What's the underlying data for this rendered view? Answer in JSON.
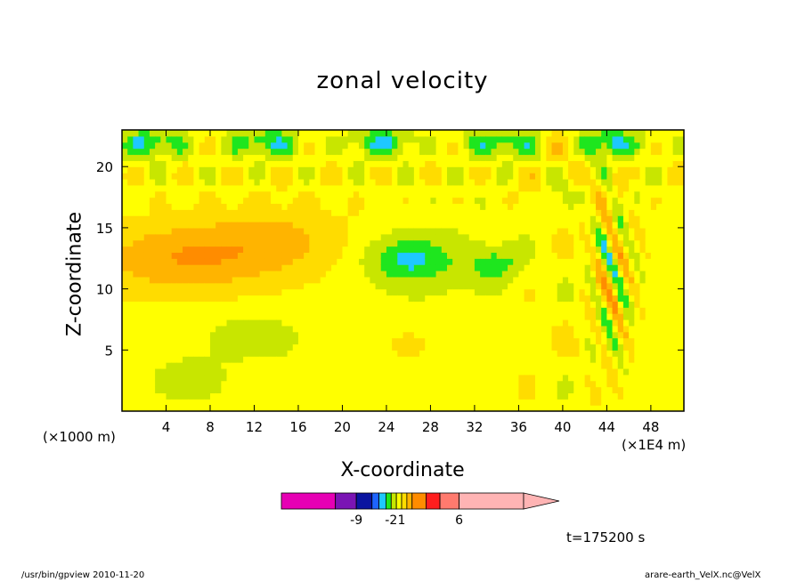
{
  "chart_data": {
    "type": "heatmap",
    "title": "zonal velocity",
    "xlabel": "X-coordinate",
    "ylabel": "Z-coordinate",
    "x_unit_note": "(×1000 m)",
    "x_multiplier_note": "(×1E4 m)",
    "xlim": [
      0,
      51
    ],
    "ylim": [
      0,
      23
    ],
    "x_ticks": [
      4,
      8,
      12,
      16,
      20,
      24,
      28,
      32,
      36,
      40,
      44,
      48
    ],
    "x_tick_labels": [
      "4",
      "8",
      "12",
      "16",
      "20",
      "24",
      "28",
      "32",
      "36",
      "40",
      "44",
      "48"
    ],
    "y_ticks": [
      5,
      10,
      15,
      20
    ],
    "y_tick_labels": [
      "5",
      "10",
      "15",
      "20"
    ],
    "colorbar": {
      "levels": [
        -20,
        -9,
        -6,
        -4,
        -3,
        -2,
        -1,
        0,
        1,
        2,
        3,
        4,
        6,
        8,
        20
      ],
      "colors": [
        "#e600b4",
        "#7a14b4",
        "#0a14a0",
        "#1e64ff",
        "#1ec8ff",
        "#1ee61e",
        "#c8e600",
        "#ffff00",
        "#ffdc00",
        "#ffb400",
        "#ff8c00",
        "#ff1e1e",
        "#ff7a6e",
        "#ffb4b4"
      ],
      "tick_labels": [
        "-9",
        "-2",
        "1",
        "6"
      ],
      "tick_values": [
        -9,
        -2,
        1,
        6
      ]
    },
    "annotations": {
      "time": "t=175200 s",
      "footer_left": "/usr/bin/gpview   2010-11-20",
      "footer_right": "arare-earth_VelX.nc@VelX"
    }
  }
}
